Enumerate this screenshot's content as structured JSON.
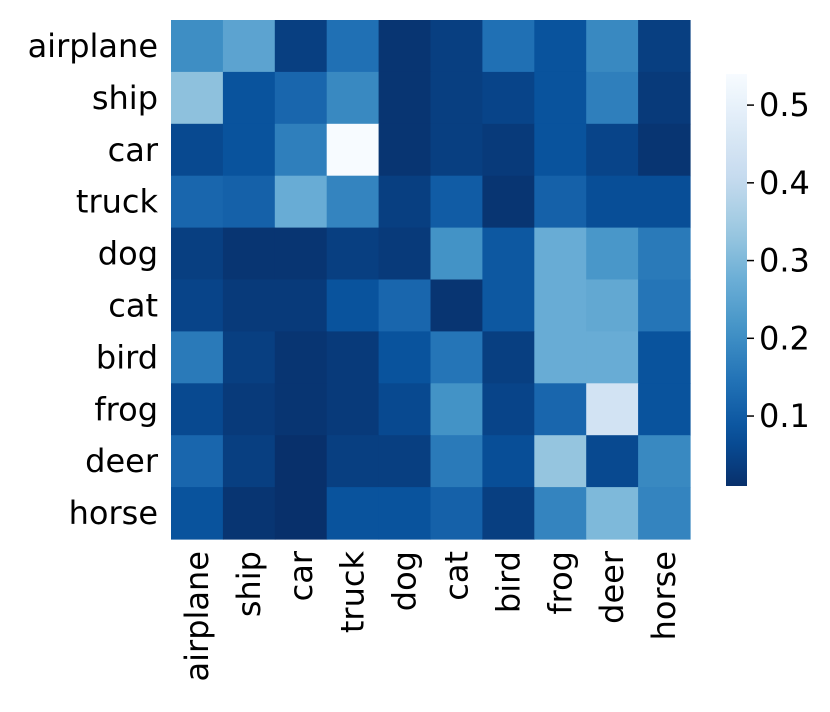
{
  "chart_data": {
    "type": "heatmap",
    "title": "",
    "xlabel": "",
    "ylabel": "",
    "rows": [
      "airplane",
      "ship",
      "car",
      "truck",
      "dog",
      "cat",
      "bird",
      "frog",
      "deer",
      "horse"
    ],
    "columns": [
      "airplane",
      "ship",
      "car",
      "truck",
      "dog",
      "cat",
      "bird",
      "frog",
      "deer",
      "horse"
    ],
    "values": [
      [
        0.2,
        0.25,
        0.04,
        0.14,
        0.02,
        0.04,
        0.14,
        0.08,
        0.19,
        0.04
      ],
      [
        0.32,
        0.08,
        0.12,
        0.19,
        0.02,
        0.04,
        0.05,
        0.08,
        0.17,
        0.03
      ],
      [
        0.06,
        0.08,
        0.17,
        0.54,
        0.02,
        0.04,
        0.03,
        0.08,
        0.05,
        0.02
      ],
      [
        0.12,
        0.11,
        0.27,
        0.18,
        0.04,
        0.1,
        0.02,
        0.11,
        0.07,
        0.07
      ],
      [
        0.04,
        0.02,
        0.02,
        0.04,
        0.03,
        0.21,
        0.09,
        0.27,
        0.22,
        0.16
      ],
      [
        0.05,
        0.03,
        0.03,
        0.08,
        0.12,
        0.02,
        0.09,
        0.27,
        0.26,
        0.15
      ],
      [
        0.16,
        0.04,
        0.02,
        0.03,
        0.08,
        0.15,
        0.04,
        0.27,
        0.27,
        0.08
      ],
      [
        0.06,
        0.03,
        0.02,
        0.03,
        0.06,
        0.21,
        0.05,
        0.12,
        0.44,
        0.08
      ],
      [
        0.12,
        0.04,
        0.01,
        0.04,
        0.04,
        0.16,
        0.07,
        0.33,
        0.06,
        0.19
      ],
      [
        0.08,
        0.02,
        0.01,
        0.08,
        0.08,
        0.11,
        0.04,
        0.18,
        0.3,
        0.18
      ]
    ],
    "colorscale": "Blues_r",
    "colorbar": {
      "vmin": 0.01,
      "vmax": 0.54,
      "ticks": [
        0.1,
        0.2,
        0.3,
        0.4,
        0.5
      ],
      "tick_labels": [
        "0.1",
        "0.2",
        "0.3",
        "0.4",
        "0.5"
      ]
    },
    "legend": "colorbar-right"
  }
}
